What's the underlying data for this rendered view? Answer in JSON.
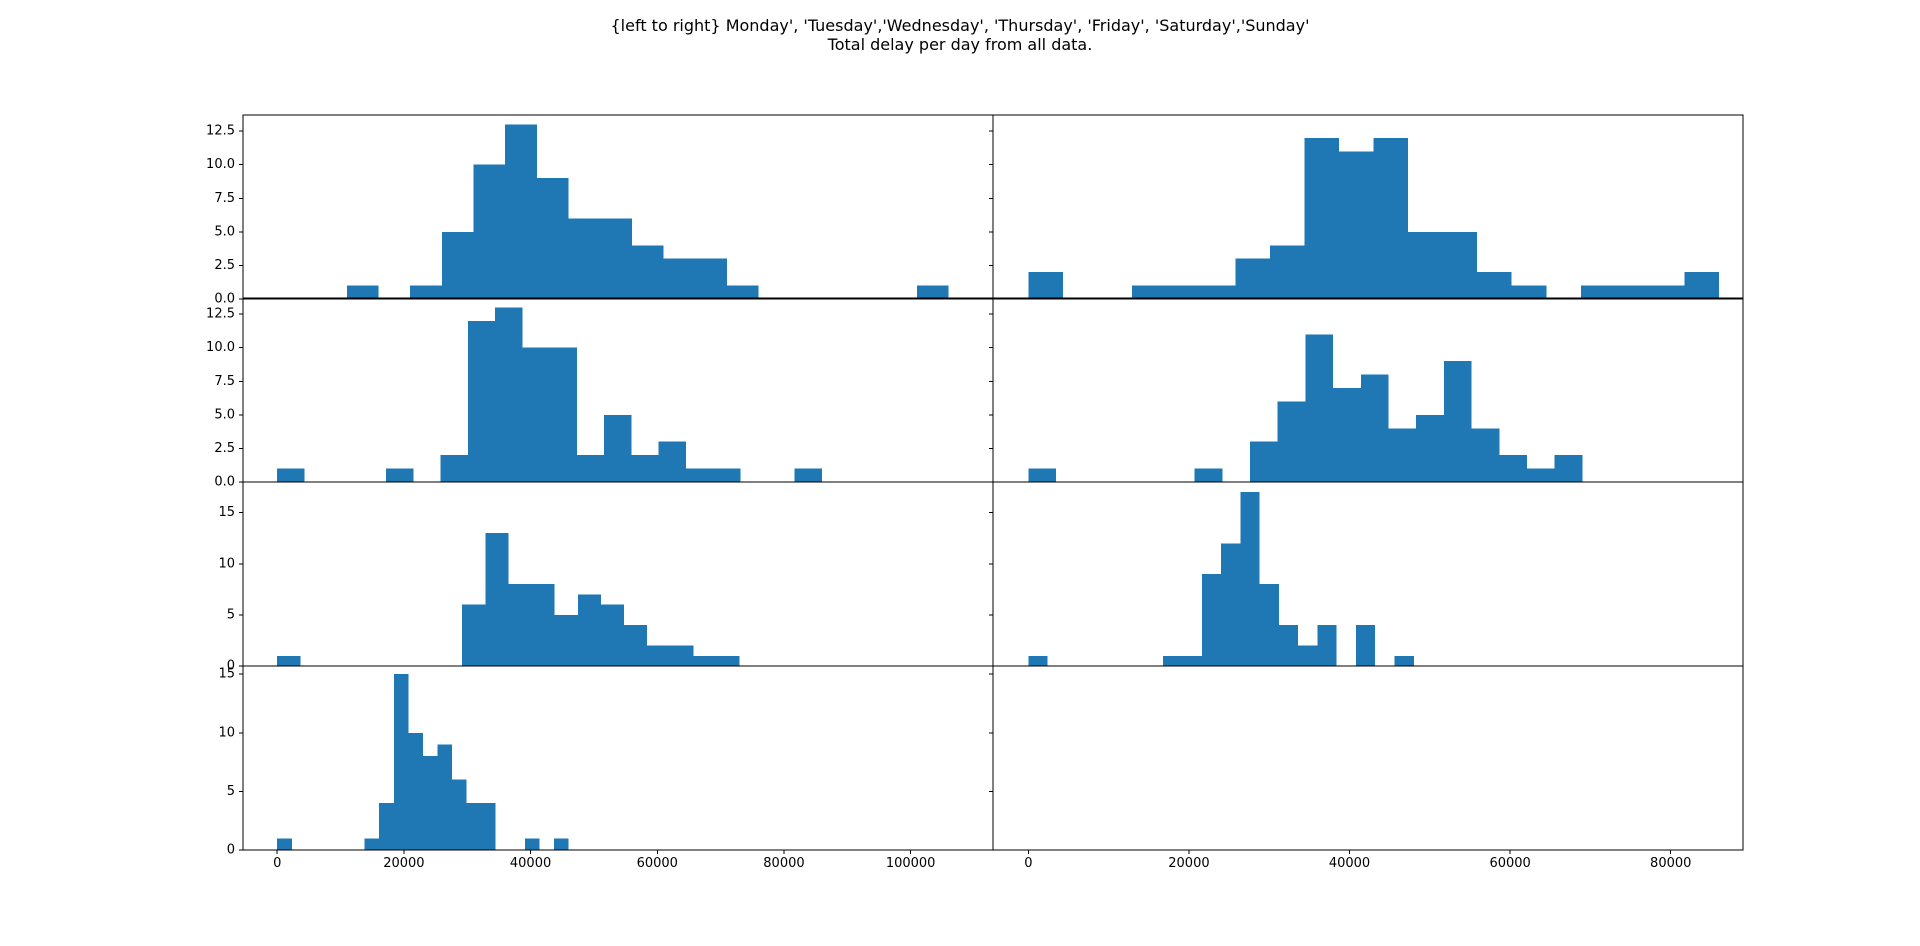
{
  "figure": {
    "title_line1": "{left to right} Monday', 'Tuesday','Wednesday', 'Thursday', 'Friday', 'Saturday','Sunday'",
    "title_line2": "Total delay per day from all data."
  },
  "style": {
    "bar_color": "#1f77b4",
    "axis_color": "#000000",
    "background": "#ffffff"
  },
  "chart_data": [
    {
      "type": "bar",
      "row": 0,
      "col": 0,
      "x_range": [
        -5400,
        113000
      ],
      "ylim": [
        0,
        13.7
      ],
      "yticks": [
        0,
        2.5,
        5,
        7.5,
        10,
        12.5
      ],
      "ytick_labels": [
        "0.0",
        "2.5",
        "5.0",
        "7.5",
        "10.0",
        "12.5"
      ],
      "bin_edges": [
        11000,
        16000,
        21000,
        26000,
        31000,
        36000,
        41000,
        46000,
        51000,
        56000,
        61000,
        66000,
        71000,
        76000,
        81000,
        86000,
        91000,
        96000,
        101000,
        106000
      ],
      "values": [
        1,
        0,
        1,
        5,
        10,
        13,
        9,
        6,
        6,
        4,
        3,
        3,
        1,
        0,
        0,
        0,
        0,
        0,
        1
      ]
    },
    {
      "type": "bar",
      "row": 0,
      "col": 1,
      "x_range": [
        -4400,
        89000
      ],
      "ylim": [
        0,
        13.7
      ],
      "bin_edges": [
        0,
        4300,
        8600,
        12900,
        17200,
        21500,
        25800,
        30100,
        34400,
        38700,
        43000,
        47300,
        51600,
        55900,
        60200,
        64500,
        68800,
        73100,
        77400,
        81700,
        86000
      ],
      "values": [
        2,
        0,
        0,
        1,
        1,
        1,
        3,
        4,
        12,
        11,
        12,
        5,
        5,
        2,
        1,
        0,
        1,
        1,
        1,
        2
      ]
    },
    {
      "type": "bar",
      "row": 1,
      "col": 0,
      "x_range": [
        -5400,
        113000
      ],
      "ylim": [
        0,
        13.7
      ],
      "yticks": [
        0,
        2.5,
        5,
        7.5,
        10,
        12.5
      ],
      "ytick_labels": [
        "0.0",
        "2.5",
        "5.0",
        "7.5",
        "10.0",
        "12.5"
      ],
      "bin_edges": [
        0,
        4300,
        8600,
        12900,
        17200,
        21500,
        25800,
        30100,
        34400,
        38700,
        43000,
        47300,
        51600,
        55900,
        60200,
        64500,
        68800,
        73100,
        77400,
        81700,
        86000
      ],
      "values": [
        1,
        0,
        0,
        0,
        1,
        0,
        2,
        12,
        13,
        10,
        10,
        2,
        5,
        2,
        3,
        1,
        1,
        0,
        0,
        1
      ]
    },
    {
      "type": "bar",
      "row": 1,
      "col": 1,
      "x_range": [
        -4400,
        89000
      ],
      "ylim": [
        0,
        13.7
      ],
      "bin_edges": [
        0,
        3450,
        6900,
        10350,
        13800,
        17250,
        20700,
        24150,
        27600,
        31050,
        34500,
        37950,
        41400,
        44850,
        48300,
        51750,
        55200,
        58650,
        62100,
        65550,
        69000
      ],
      "values": [
        1,
        0,
        0,
        0,
        0,
        0,
        1,
        0,
        3,
        6,
        11,
        7,
        8,
        4,
        5,
        9,
        4,
        2,
        1,
        2
      ]
    },
    {
      "type": "bar",
      "row": 2,
      "col": 0,
      "x_range": [
        -5400,
        113000
      ],
      "ylim": [
        0,
        18
      ],
      "yticks": [
        0,
        5,
        10,
        15
      ],
      "ytick_labels": [
        "0",
        "5",
        "10",
        "15"
      ],
      "bin_edges": [
        0,
        3650,
        7300,
        10950,
        14600,
        18250,
        21900,
        25550,
        29200,
        32850,
        36500,
        40150,
        43800,
        47450,
        51100,
        54750,
        58400,
        62050,
        65700,
        69350,
        73000
      ],
      "values": [
        1,
        0,
        0,
        0,
        0,
        0,
        0,
        0,
        6,
        13,
        8,
        8,
        5,
        7,
        6,
        4,
        2,
        2,
        1,
        1
      ]
    },
    {
      "type": "bar",
      "row": 2,
      "col": 1,
      "x_range": [
        -4400,
        89000
      ],
      "ylim": [
        0,
        18
      ],
      "bin_edges": [
        0,
        2400,
        4800,
        7200,
        9600,
        12000,
        14400,
        16800,
        19200,
        21600,
        24000,
        26400,
        28800,
        31200,
        33600,
        36000,
        38400,
        40800,
        43200,
        45600,
        48000
      ],
      "values": [
        1,
        0,
        0,
        0,
        0,
        0,
        0,
        1,
        1,
        9,
        12,
        17,
        8,
        4,
        2,
        4,
        0,
        4,
        0,
        1
      ]
    },
    {
      "type": "bar",
      "row": 3,
      "col": 0,
      "x_range": [
        -5400,
        113000
      ],
      "ylim": [
        0,
        15.7
      ],
      "yticks": [
        0,
        5,
        10,
        15
      ],
      "ytick_labels": [
        "0",
        "5",
        "10",
        "15"
      ],
      "xticks": [
        0,
        20000,
        40000,
        60000,
        80000,
        100000
      ],
      "xtick_labels": [
        "0",
        "20000",
        "40000",
        "60000",
        "80000",
        "100000"
      ],
      "bin_edges": [
        0,
        2300,
        4600,
        6900,
        9200,
        11500,
        13800,
        16100,
        18400,
        20700,
        23000,
        25300,
        27600,
        29900,
        32200,
        34500,
        36800,
        39100,
        41400,
        43700,
        46000
      ],
      "values": [
        1,
        0,
        0,
        0,
        0,
        0,
        1,
        4,
        15,
        10,
        8,
        9,
        6,
        4,
        4,
        0,
        0,
        1,
        0,
        1
      ]
    },
    {
      "type": "bar",
      "row": 3,
      "col": 1,
      "x_range": [
        -4400,
        89000
      ],
      "ylim": [
        0,
        15.7
      ],
      "xticks": [
        0,
        20000,
        40000,
        60000,
        80000
      ],
      "xtick_labels": [
        "0",
        "20000",
        "40000",
        "60000",
        "80000"
      ],
      "bin_edges": [],
      "values": []
    }
  ]
}
